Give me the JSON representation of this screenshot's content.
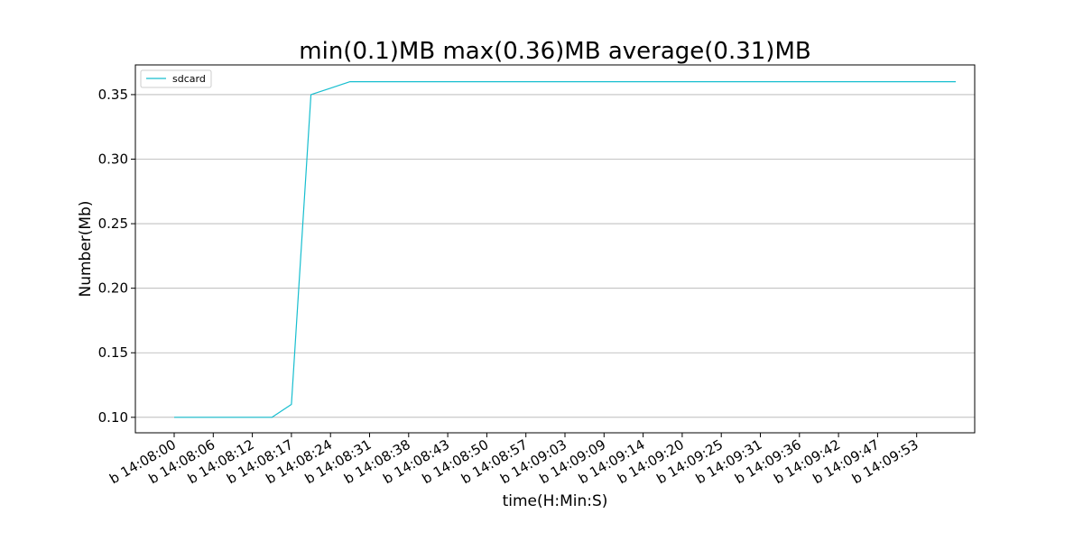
{
  "chart_data": {
    "type": "line",
    "title": "min(0.1)MB max(0.36)MB average(0.31)MB",
    "xlabel": "time(H:Min:S)",
    "ylabel": "Number(Mb)",
    "x_tick_labels": [
      "b 14:08:00",
      "b 14:08:06",
      "b 14:08:12",
      "b 14:08:17",
      "b 14:08:24",
      "b 14:08:31",
      "b 14:08:38",
      "b 14:08:43",
      "b 14:08:50",
      "b 14:08:57",
      "b 14:09:03",
      "b 14:09:09",
      "b 14:09:14",
      "b 14:09:20",
      "b 14:09:25",
      "b 14:09:31",
      "b 14:09:36",
      "b 14:09:42",
      "b 14:09:47",
      "b 14:09:53"
    ],
    "y_ticks": [
      0.1,
      0.15,
      0.2,
      0.25,
      0.3,
      0.35
    ],
    "y_tick_labels": [
      "0.10",
      "0.15",
      "0.20",
      "0.25",
      "0.30",
      "0.35"
    ],
    "ylim": [
      0.088,
      0.373
    ],
    "grid": "y-axis only",
    "legend_position": "top-left",
    "series": [
      {
        "name": "sdcard",
        "color": "#17becf",
        "values": [
          0.1,
          0.1,
          0.1,
          0.1,
          0.1,
          0.1,
          0.11,
          0.35,
          0.355,
          0.36,
          0.36,
          0.36,
          0.36,
          0.36,
          0.36,
          0.36,
          0.36,
          0.36,
          0.36,
          0.36,
          0.36,
          0.36,
          0.36,
          0.36,
          0.36,
          0.36,
          0.36,
          0.36,
          0.36,
          0.36,
          0.36,
          0.36,
          0.36,
          0.36,
          0.36,
          0.36,
          0.36,
          0.36,
          0.36,
          0.36,
          0.36
        ]
      }
    ]
  }
}
